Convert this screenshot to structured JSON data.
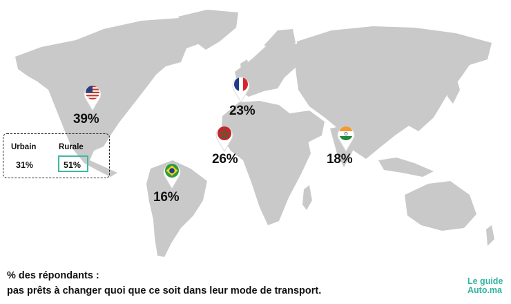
{
  "map": {
    "markers": [
      {
        "country": "États-Unis",
        "flag": "us-flag-icon",
        "value": "39%"
      },
      {
        "country": "France",
        "flag": "france-flag-icon",
        "value": "23%"
      },
      {
        "country": "Maroc",
        "flag": "morocco-flag-icon",
        "value": "26%"
      },
      {
        "country": "Inde",
        "flag": "india-flag-icon",
        "value": "18%"
      },
      {
        "country": "Brésil",
        "flag": "brazil-flag-icon",
        "value": "16%"
      }
    ],
    "land_color": "#c9c9c9"
  },
  "legend": {
    "urbain_label": "Urbain",
    "urbain_value": "31%",
    "rurale_label": "Rurale",
    "rurale_value": "51%",
    "highlight_color": "#3fb8a5"
  },
  "caption": {
    "line1": "% des répondants :",
    "line2": "pas prêts à changer quoi que ce soit dans leur mode de transport."
  },
  "brand": {
    "line1": "Le guide",
    "line2": "Auto.ma",
    "color": "#2fb3a0"
  }
}
